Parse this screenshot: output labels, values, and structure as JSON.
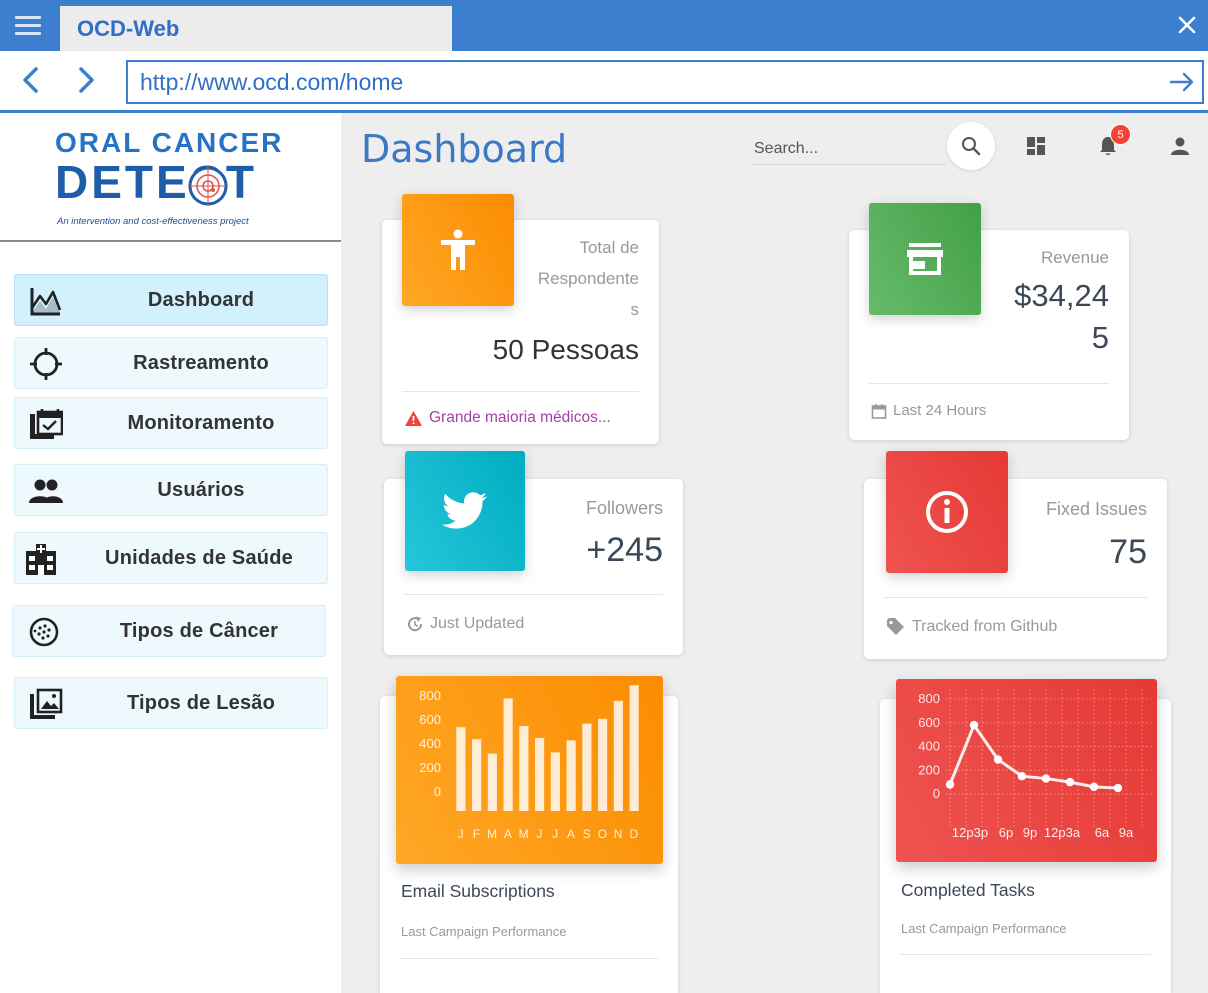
{
  "browser": {
    "tab_title": "OCD-Web",
    "url": "http://www.ocd.com/home"
  },
  "logo": {
    "line1": "ORAL CANCER",
    "line2": "DETECT",
    "tagline": "An intervention and cost-effectiveness project"
  },
  "sidebar": {
    "items": [
      {
        "label": "Dashboard",
        "icon": "chart-line-icon",
        "active": true
      },
      {
        "label": "Rastreamento",
        "icon": "crosshair-icon"
      },
      {
        "label": "Monitoramento",
        "icon": "calendar-check-icon"
      },
      {
        "label": "Usuários",
        "icon": "users-icon"
      },
      {
        "label": "Unidades de Saúde",
        "icon": "hospital-icon"
      },
      {
        "label": "Tipos de Câncer",
        "icon": "cell-icon"
      },
      {
        "label": "Tipos de Lesão",
        "icon": "image-library-icon"
      }
    ]
  },
  "header": {
    "title": "Dashboard",
    "search_placeholder": "Search...",
    "notification_count": "5"
  },
  "stats": {
    "respondents": {
      "category_line1": "Total de",
      "category_line2": "Respondente",
      "category_line3": "s",
      "value": "50 Pessoas",
      "footer": "Grande maioria médicos...",
      "color": "#fb8c00"
    },
    "revenue": {
      "category": "Revenue",
      "value_line1": "$34,24",
      "value_line2": "5",
      "footer": "Last 24 Hours",
      "color": "#4caf50"
    },
    "followers": {
      "category": "Followers",
      "value": "+245",
      "footer": "Just Updated",
      "color": "#00acc1"
    },
    "issues": {
      "category": "Fixed Issues",
      "value": "75",
      "footer": "Tracked from Github",
      "color": "#e53935"
    }
  },
  "charts": {
    "email": {
      "title": "Email Subscriptions",
      "subtitle": "Last Campaign Performance",
      "color": "#fb8c00"
    },
    "tasks": {
      "title": "Completed Tasks",
      "subtitle": "Last Campaign Performance",
      "color": "#e53935"
    }
  },
  "chart_data": [
    {
      "type": "bar",
      "title": "",
      "xlabel": "",
      "ylabel": "",
      "categories": [
        "J",
        "F",
        "M",
        "A",
        "M",
        "J",
        "J",
        "A",
        "S",
        "O",
        "N",
        "D"
      ],
      "values": [
        540,
        440,
        320,
        780,
        550,
        450,
        330,
        430,
        570,
        610,
        760,
        890
      ],
      "ylim": [
        0,
        800
      ],
      "yticks": [
        "800",
        "600",
        "400",
        "200",
        "0"
      ],
      "grid": false
    },
    {
      "type": "line",
      "title": "",
      "xlabel": "",
      "ylabel": "",
      "categories": [
        "12p",
        "3p",
        "6p",
        "9p",
        "12p",
        "3a",
        "6a",
        "9a"
      ],
      "tick_labels": [
        "12p3p",
        "6p",
        "9p",
        "12p3a",
        "6a",
        "9a"
      ],
      "values": [
        80,
        580,
        290,
        150,
        130,
        100,
        60,
        50
      ],
      "ylim": [
        0,
        800
      ],
      "yticks": [
        "800",
        "600",
        "400",
        "200",
        "0"
      ],
      "grid": true
    }
  ]
}
